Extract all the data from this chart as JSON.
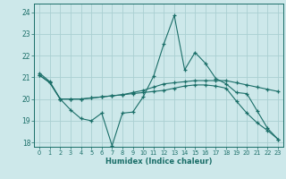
{
  "xlabel": "Humidex (Indice chaleur)",
  "background_color": "#cde8ea",
  "grid_color": "#aacfd2",
  "line_color": "#1a6e68",
  "ylim": [
    17.8,
    24.4
  ],
  "xlim": [
    -0.5,
    23.5
  ],
  "yticks": [
    18,
    19,
    20,
    21,
    22,
    23,
    24
  ],
  "xticks": [
    0,
    1,
    2,
    3,
    4,
    5,
    6,
    7,
    8,
    9,
    10,
    11,
    12,
    13,
    14,
    15,
    16,
    17,
    18,
    19,
    20,
    21,
    22,
    23
  ],
  "line1_x": [
    0,
    1,
    2,
    3,
    4,
    5,
    6,
    7,
    8,
    9,
    10,
    11,
    12,
    13,
    14,
    15,
    16,
    17,
    18,
    19,
    20,
    21,
    22,
    23
  ],
  "line1_y": [
    21.2,
    20.8,
    20.0,
    19.5,
    19.1,
    19.0,
    19.35,
    17.85,
    19.35,
    19.4,
    20.1,
    21.05,
    22.55,
    23.85,
    21.35,
    22.15,
    21.65,
    20.95,
    20.7,
    20.3,
    20.25,
    19.45,
    18.65,
    18.15
  ],
  "line2_x": [
    0,
    1,
    2,
    3,
    4,
    5,
    6,
    7,
    8,
    9,
    10,
    11,
    12,
    13,
    14,
    15,
    16,
    17,
    18,
    19,
    20,
    21,
    22,
    23
  ],
  "line2_y": [
    21.1,
    20.75,
    20.0,
    20.0,
    20.0,
    20.05,
    20.1,
    20.15,
    20.2,
    20.3,
    20.4,
    20.55,
    20.7,
    20.75,
    20.8,
    20.85,
    20.85,
    20.85,
    20.85,
    20.75,
    20.65,
    20.55,
    20.45,
    20.35
  ],
  "line3_x": [
    0,
    1,
    2,
    3,
    4,
    5,
    6,
    7,
    8,
    9,
    10,
    11,
    12,
    13,
    14,
    15,
    16,
    17,
    18,
    19,
    20,
    21,
    22,
    23
  ],
  "line3_y": [
    21.1,
    20.75,
    20.0,
    20.0,
    20.0,
    20.05,
    20.1,
    20.15,
    20.2,
    20.25,
    20.3,
    20.35,
    20.4,
    20.5,
    20.6,
    20.65,
    20.65,
    20.6,
    20.5,
    19.9,
    19.35,
    18.9,
    18.55,
    18.15
  ]
}
